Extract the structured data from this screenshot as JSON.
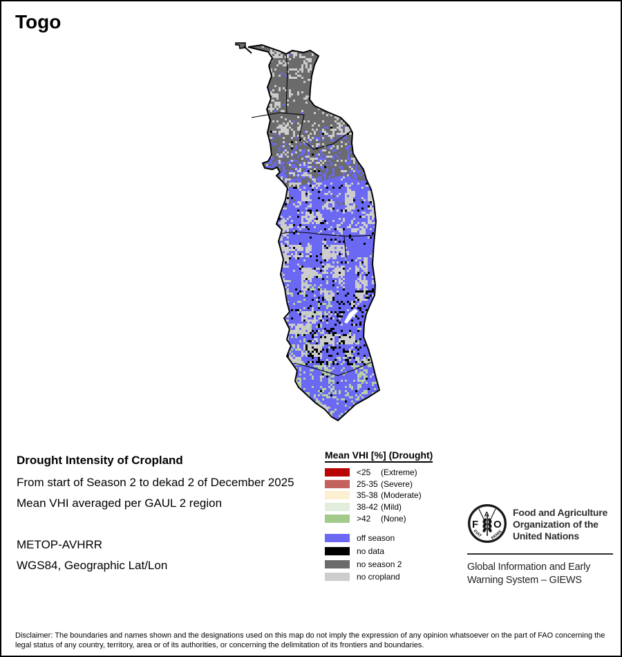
{
  "title": "Togo",
  "info": {
    "heading": "Drought Intensity of Cropland",
    "period": "From start of Season 2 to dekad 2 of December 2025",
    "method": "Mean VHI averaged per GAUL 2 region",
    "sensor": "METOP-AVHRR",
    "projection": "WGS84, Geographic Lat/Lon"
  },
  "legend": {
    "title": "Mean VHI [%] (Drought)",
    "classes": [
      {
        "value": "<25",
        "name": "(Extreme)",
        "color": "#b80404"
      },
      {
        "value": "25-35",
        "name": "(Severe)",
        "color": "#c4635d"
      },
      {
        "value": "35-38",
        "name": "(Moderate)",
        "color": "#fdf0d2"
      },
      {
        "value": "38-42",
        "name": "(Mild)",
        "color": "#e1eedb"
      },
      {
        "value": ">42",
        "name": "(None)",
        "color": "#a2cb8a"
      }
    ],
    "extras": [
      {
        "label": "off season",
        "color": "#6b68f3"
      },
      {
        "label": "no data",
        "color": "#000000"
      },
      {
        "label": "no season 2",
        "color": "#6b6b6b"
      },
      {
        "label": "no cropland",
        "color": "#cdcdcd"
      }
    ]
  },
  "map": {
    "country": "Togo",
    "colors": {
      "off_season": "#6b68f3",
      "no_data": "#000000",
      "no_season_2": "#6b6b6b",
      "no_cropland": "#cdcdcd",
      "mild_green": "#b5d0a4",
      "water": "#ffffff",
      "outline": "#000000"
    }
  },
  "footer": {
    "fao_logo": {
      "letters": [
        "F",
        "A",
        "O"
      ],
      "motto": [
        "FIAT",
        "PANIS"
      ]
    },
    "fao_name_lines": [
      "Food and Agriculture",
      "Organization of the",
      "United Nations"
    ],
    "giews_lines": [
      "Global Information and Early",
      "Warning System – GIEWS"
    ],
    "disclaimer": "Disclaimer: The boundaries and names shown and the designations used on this map do not imply the expression of any opinion whatsoever on the part of FAO concerning the legal status of any country, territory, area or of its authorities, or concerning the delimitation of its frontiers and boundaries."
  }
}
